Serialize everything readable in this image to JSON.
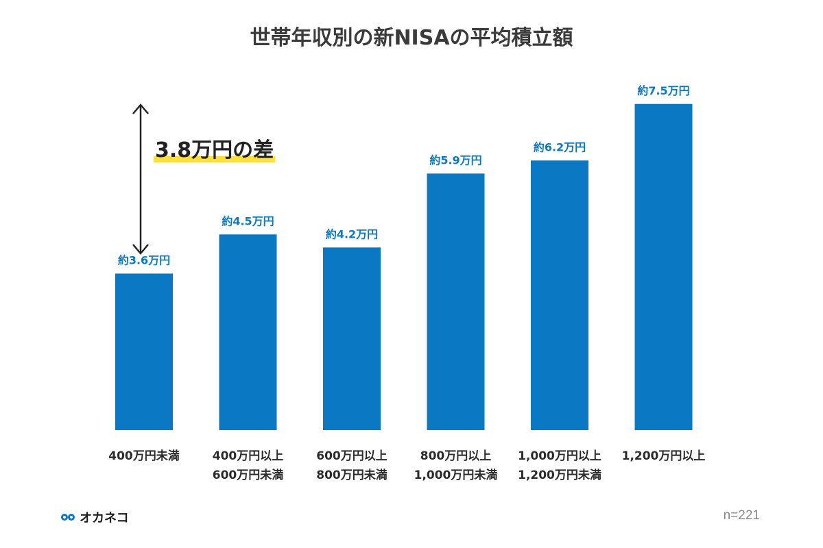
{
  "chart_data": {
    "type": "bar",
    "title": "世帯年収別の新NISAの平均積立額",
    "categories": [
      [
        "400万円未満"
      ],
      [
        "400万円以上",
        "600万円未満"
      ],
      [
        "600万円以上",
        "800万円未満"
      ],
      [
        "800万円以上",
        "1,000万円未満"
      ],
      [
        "1,000万円以上",
        "1,200万円未満"
      ],
      [
        "1,200万円以上"
      ]
    ],
    "values": [
      3.6,
      4.5,
      4.2,
      5.9,
      6.2,
      7.5
    ],
    "data_labels": [
      "約3.6万円",
      "約4.5万円",
      "約4.2万円",
      "約5.9万円",
      "約6.2万円",
      "約7.5万円"
    ],
    "bar_color": "#0a78c2",
    "label_color": "#0a78c2",
    "grid": false,
    "annotation": {
      "text": "3.8万円の差",
      "highlight_color": "#ffdf3a"
    }
  },
  "footer": {
    "brand": "オカネコ",
    "sample_size": "n=221"
  }
}
